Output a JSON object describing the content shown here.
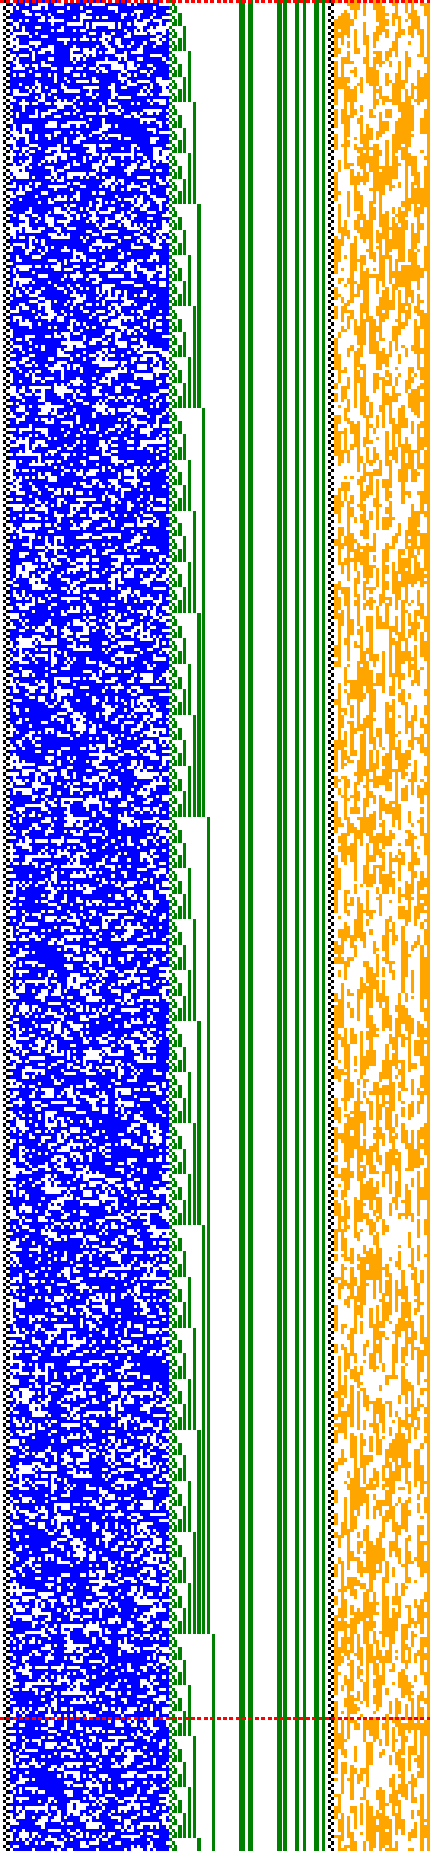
{
  "colors": {
    "background": "#ffffff",
    "marker": "#000000",
    "blue": "#0000ff",
    "green": "#008000",
    "orange": "#ffa500",
    "boundary": "#ff0000"
  },
  "grid": {
    "rows": 580,
    "boundary_rows": [
      0,
      538
    ],
    "marker_pattern": "alternating-dots"
  },
  "bands": [
    {
      "name": "marker-column",
      "color": "marker",
      "fill": 0.5
    },
    {
      "name": "blue-random-band",
      "color": "blue",
      "fill": 0.55
    },
    {
      "name": "green-binary-counter-band",
      "color": "green"
    },
    {
      "name": "green-vertical-stripes",
      "color": "green"
    },
    {
      "name": "marker-column-right",
      "color": "marker",
      "fill": 0.5
    },
    {
      "name": "orange-band",
      "color": "orange",
      "fill": 0.6
    }
  ]
}
